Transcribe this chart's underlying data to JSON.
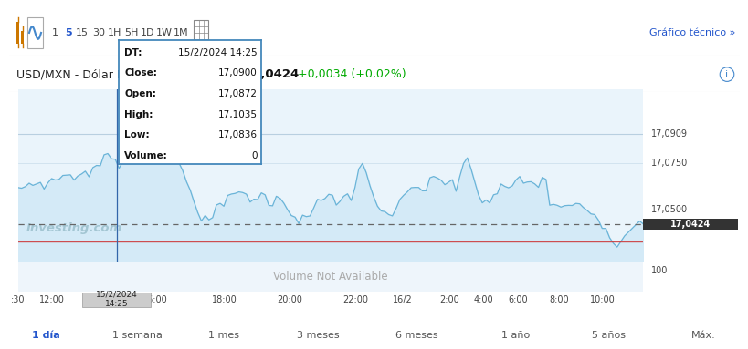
{
  "title_symbol": "USD/MXN - Dólar Peso mexicano",
  "title_arrow": "▲",
  "title_price": "17,0424",
  "title_change": "+0,0034 (+0,02%)",
  "title_change_color": "#00aa00",
  "current_price": 17.0424,
  "dashed_line_y": 17.0424,
  "red_line_y": 17.033,
  "y_max": 17.115,
  "y_min": 17.022,
  "y_ticks": [
    17.05,
    17.075,
    17.0909
  ],
  "y_tick_labels": [
    "17,0500",
    "17,0750",
    "17,0909"
  ],
  "x_tick_labels": [
    ":30",
    "12:00",
    "16:00",
    "18:00",
    "20:00",
    "22:00",
    "16/2",
    "2:00",
    "4:00",
    "6:00",
    "8:00",
    "10:00"
  ],
  "x_tick_positions": [
    0.0,
    0.055,
    0.22,
    0.33,
    0.435,
    0.54,
    0.615,
    0.69,
    0.745,
    0.8,
    0.865,
    0.935
  ],
  "tooltip": {
    "DT": "15/2/2024 14:25",
    "Close": "17,0900",
    "Open": "17,0872",
    "High": "17,1035",
    "Low": "17,0836",
    "Volume": "0"
  },
  "line_color": "#6ab4d8",
  "fill_color_top": "#d6eaf8",
  "fill_color_bot": "#e8f4fb",
  "bg_color": "#eaf4fb",
  "volume_bg": "#eef6fb",
  "volume_text": "Volume Not Available",
  "watermark": "Investing.com",
  "top_bar_labels": [
    "1",
    "5",
    "15",
    "30",
    "1H",
    "5H",
    "1D",
    "1W",
    "1M"
  ],
  "top_bar_active": "5",
  "bottom_tabs": [
    "1 día",
    "1 semana",
    "1 mes",
    "3 meses",
    "6 meses",
    "1 año",
    "5 años",
    "Máx."
  ],
  "bottom_active": "1 día",
  "grafico_tecnico": "Gráfico técnico »",
  "current_price_label": "17,0424",
  "top_line_y": 17.0909,
  "tooltip_vline_x": 0.158,
  "tooltip_date_label": "15/2/2024\n14:25"
}
